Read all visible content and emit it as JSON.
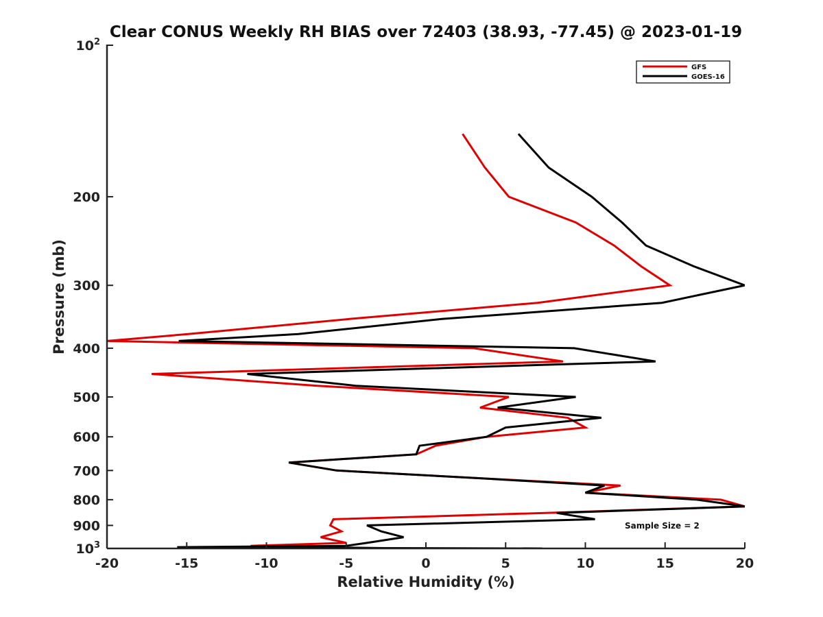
{
  "chart_data": {
    "type": "line",
    "title": "Clear CONUS Weekly RH BIAS over 72403 (38.93, -77.45) @ 2023-01-19",
    "xlabel": "Relative Humidity (%)",
    "ylabel": "Pressure (mb)",
    "xlim": [
      -20,
      20
    ],
    "ylim": [
      1000,
      100
    ],
    "y_scale": "log",
    "y_reversed": true,
    "grid": false,
    "legend_position": "top-right",
    "x_ticks": [
      "-20",
      "-15",
      "-10",
      "-5",
      "0",
      "5",
      "10",
      "15",
      "20"
    ],
    "y_ticks": [
      {
        "value": 100,
        "base": "10",
        "exp": "2"
      },
      {
        "value": 200,
        "label": "200"
      },
      {
        "value": 300,
        "label": "300"
      },
      {
        "value": 400,
        "label": "400"
      },
      {
        "value": 500,
        "label": "500"
      },
      {
        "value": 600,
        "label": "600"
      },
      {
        "value": 700,
        "label": "700"
      },
      {
        "value": 800,
        "label": "800"
      },
      {
        "value": 900,
        "label": "900"
      },
      {
        "value": 1000,
        "base": "10",
        "exp": "3"
      }
    ],
    "annotation": "Sample Size = 2",
    "series": [
      {
        "name": "GFS",
        "color": "#e00000",
        "points": [
          [
            2.3,
            150
          ],
          [
            3.7,
            175
          ],
          [
            5.2,
            200
          ],
          [
            9.4,
            225
          ],
          [
            11.8,
            250
          ],
          [
            13.5,
            275
          ],
          [
            15.3,
            300
          ],
          [
            7.0,
            325
          ],
          [
            -4.8,
            350
          ],
          [
            -14.9,
            375
          ],
          [
            -20.0,
            387
          ],
          [
            3.0,
            400
          ],
          [
            8.6,
            425
          ],
          [
            -17.2,
            450
          ],
          [
            -6.8,
            475
          ],
          [
            5.2,
            500
          ],
          [
            3.4,
            525
          ],
          [
            8.9,
            550
          ],
          [
            10.0,
            575
          ],
          [
            3.8,
            600
          ],
          [
            0.6,
            625
          ],
          [
            -0.6,
            650
          ],
          [
            -8.6,
            675
          ],
          [
            -5.6,
            700
          ],
          [
            3.3,
            725
          ],
          [
            12.2,
            750
          ],
          [
            10.0,
            775
          ],
          [
            18.5,
            800
          ],
          [
            20.0,
            825
          ],
          [
            7.5,
            850
          ],
          [
            -5.8,
            875
          ],
          [
            -6.0,
            900
          ],
          [
            -5.3,
            925
          ],
          [
            -6.6,
            950
          ],
          [
            -5.0,
            975
          ],
          [
            -11.0,
            988
          ],
          [
            -1.5,
            1000
          ]
        ]
      },
      {
        "name": "GOES-16",
        "color": "#000000",
        "points": [
          [
            5.8,
            150
          ],
          [
            7.7,
            175
          ],
          [
            10.4,
            200
          ],
          [
            12.3,
            225
          ],
          [
            13.8,
            250
          ],
          [
            16.8,
            275
          ],
          [
            20.0,
            300
          ],
          [
            14.8,
            325
          ],
          [
            1.0,
            350
          ],
          [
            -8.0,
            375
          ],
          [
            -15.5,
            387
          ],
          [
            9.3,
            400
          ],
          [
            14.4,
            425
          ],
          [
            -11.2,
            450
          ],
          [
            -4.4,
            475
          ],
          [
            9.4,
            500
          ],
          [
            4.5,
            525
          ],
          [
            11.0,
            550
          ],
          [
            5.0,
            575
          ],
          [
            3.8,
            600
          ],
          [
            -0.4,
            625
          ],
          [
            -0.6,
            650
          ],
          [
            -8.6,
            675
          ],
          [
            -5.6,
            700
          ],
          [
            3.3,
            725
          ],
          [
            11.2,
            750
          ],
          [
            10.0,
            775
          ],
          [
            17.0,
            800
          ],
          [
            20.0,
            825
          ],
          [
            8.2,
            850
          ],
          [
            10.6,
            875
          ],
          [
            -3.7,
            900
          ],
          [
            -2.8,
            925
          ],
          [
            -1.4,
            950
          ],
          [
            -3.7,
            975
          ],
          [
            -5.0,
            988
          ],
          [
            -15.6,
            994
          ],
          [
            -12.3,
            997
          ],
          [
            7.3,
            1000
          ]
        ]
      }
    ]
  }
}
